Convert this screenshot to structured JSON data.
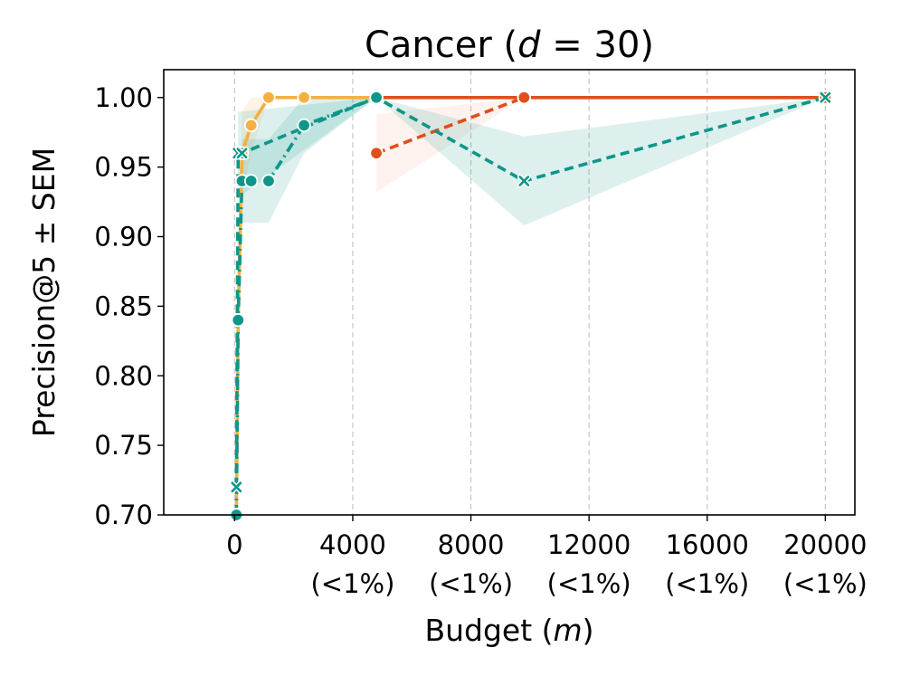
{
  "chart_data": {
    "type": "line",
    "title": "Cancer (d = 30)",
    "title_parts": {
      "prefix": "Cancer (",
      "italic": "d",
      "suffix": " = 30)"
    },
    "xlabel": "Budget (m)",
    "xlabel_parts": {
      "prefix": "Budget (",
      "italic": "m",
      "suffix": ")"
    },
    "ylabel": "Precision@5 ± SEM",
    "xlim": [
      -2400,
      21000
    ],
    "ylim": [
      0.7,
      1.02
    ],
    "x_ticks": [
      0,
      4000,
      8000,
      12000,
      16000,
      20000
    ],
    "x_tick_labels": [
      "0",
      "4000",
      "8000",
      "12000",
      "16000",
      "20000"
    ],
    "x_tick_sublabels": [
      "",
      "(<1%)",
      "(<1%)",
      "(<1%)",
      "(<1%)",
      "(<1%)"
    ],
    "y_ticks": [
      0.7,
      0.75,
      0.8,
      0.85,
      0.9,
      0.95,
      1.0
    ],
    "y_tick_labels": [
      "0.70",
      "0.75",
      "0.80",
      "0.85",
      "0.90",
      "0.95",
      "1.00"
    ],
    "grid": "vertical-dashed",
    "series": [
      {
        "name": "orange-solid",
        "color": "#f5b041",
        "band_color": "#f5b041",
        "line_style": "solid",
        "marker": "circle",
        "x": [
          60,
          120,
          250,
          560,
          1150,
          2350,
          4800
        ],
        "y": [
          0.7,
          0.84,
          0.96,
          0.98,
          1.0,
          1.0,
          1.0
        ],
        "y_low": [
          0.7,
          0.8,
          0.93,
          0.96,
          1.0,
          1.0,
          1.0
        ],
        "y_high": [
          0.7,
          0.88,
          0.99,
          1.0,
          1.0,
          1.0,
          1.0
        ]
      },
      {
        "name": "red-solid",
        "color": "#e04e1b",
        "band_color": "#e04e1b",
        "line_style": "solid",
        "marker": "circle",
        "x": [
          4800,
          9800,
          20000
        ],
        "y": [
          1.0,
          1.0,
          1.0
        ],
        "y_low": [
          1.0,
          1.0,
          1.0
        ],
        "y_high": [
          1.0,
          1.0,
          1.0
        ]
      },
      {
        "name": "red-dashed",
        "color": "#e04e1b",
        "band_color": "#f8a488",
        "line_style": "dashed",
        "marker": "circle",
        "x": [
          4800,
          9800
        ],
        "y": [
          0.96,
          1.0
        ],
        "y_low": [
          0.932,
          1.0
        ],
        "y_high": [
          0.988,
          1.0
        ]
      },
      {
        "name": "teal-dashed-x",
        "color": "#0e9688",
        "band_color": "#0e9688",
        "line_style": "dashed",
        "marker": "x",
        "x": [
          60,
          120,
          250,
          4800,
          9800,
          20000
        ],
        "y": [
          0.72,
          0.96,
          0.96,
          1.0,
          0.94,
          1.0
        ],
        "y_low": [
          0.7,
          0.93,
          0.93,
          1.0,
          0.908,
          1.0
        ],
        "y_high": [
          0.74,
          0.99,
          0.99,
          1.0,
          0.972,
          1.0
        ]
      },
      {
        "name": "teal-dashdot-circle",
        "color": "#0e9688",
        "band_color": "#0e9688",
        "line_style": "dashdot",
        "marker": "circle",
        "x": [
          60,
          120,
          250,
          560,
          1150,
          2350,
          4800
        ],
        "y": [
          0.7,
          0.84,
          0.94,
          0.94,
          0.94,
          0.98,
          1.0
        ],
        "y_low": [
          0.7,
          0.81,
          0.91,
          0.91,
          0.91,
          0.96,
          1.0
        ],
        "y_high": [
          0.7,
          0.87,
          0.97,
          0.97,
          0.97,
          1.0,
          1.0
        ]
      }
    ]
  }
}
